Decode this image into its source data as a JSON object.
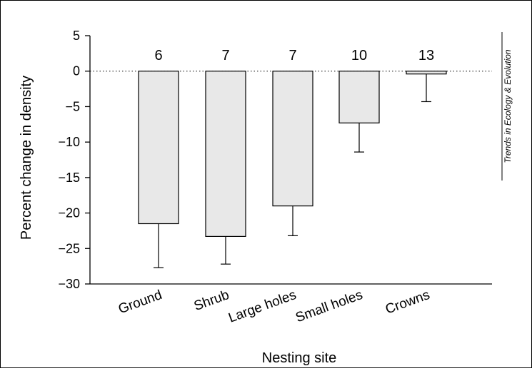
{
  "chart_data": {
    "type": "bar",
    "categories": [
      "Ground",
      "Shrub",
      "Large holes",
      "Small holes",
      "Crowns"
    ],
    "values": [
      -21.5,
      -23.3,
      -19.0,
      -7.3,
      -0.4
    ],
    "error_lower": [
      -27.7,
      -27.2,
      -23.2,
      -11.4,
      -4.3
    ],
    "n_labels": [
      "6",
      "7",
      "7",
      "10",
      "13"
    ],
    "xlabel": "Nesting site",
    "ylabel": "Percent change in density",
    "ylim": [
      -30,
      5
    ],
    "yticks": [
      5,
      0,
      -5,
      -10,
      -15,
      -20,
      -25,
      -30
    ],
    "ytick_labels": [
      "5",
      "0",
      "−5",
      "−10",
      "−15",
      "−20",
      "−25",
      "−30"
    ],
    "zero_line": "dotted",
    "grid": false,
    "bar_color": "#e8e8e8",
    "watermark": "Trends in Ecology & Evolution"
  }
}
